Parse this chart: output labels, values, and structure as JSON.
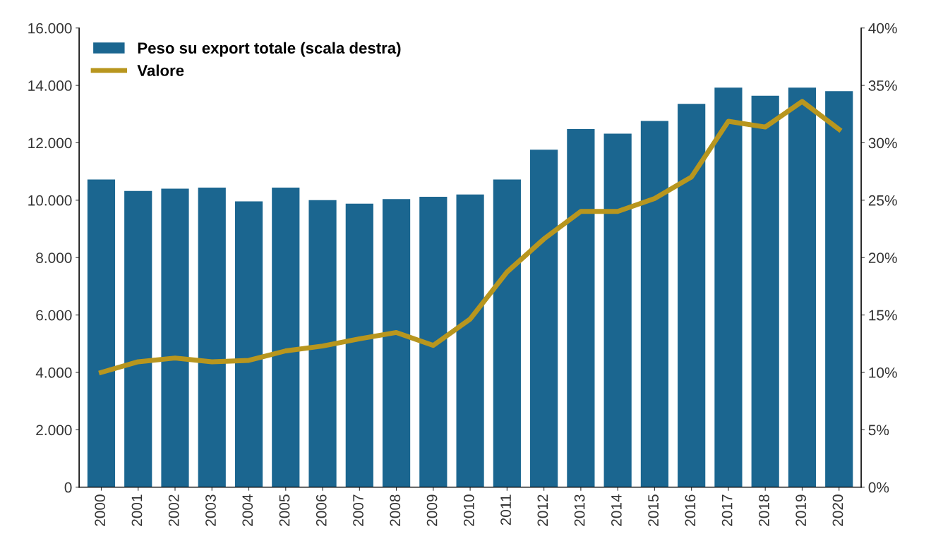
{
  "chart_data": {
    "type": "bar",
    "categories": [
      "2000",
      "2001",
      "2002",
      "2003",
      "2004",
      "2005",
      "2006",
      "2007",
      "2008",
      "2009",
      "2010",
      "2011",
      "2012",
      "2013",
      "2014",
      "2015",
      "2016",
      "2017",
      "2018",
      "2019",
      "2020"
    ],
    "series": [
      {
        "name": "Peso su export totale (scala destra)",
        "axis": "y2",
        "color": "#1b6690",
        "values": [
          26.8,
          25.8,
          26.0,
          26.1,
          24.9,
          26.1,
          25.0,
          24.7,
          25.1,
          25.3,
          25.5,
          26.8,
          29.4,
          31.2,
          30.8,
          31.9,
          33.4,
          34.8,
          34.1,
          34.8,
          34.5
        ]
      },
      {
        "name": "Valore",
        "type": "line",
        "axis": "y",
        "color": "#b8961e",
        "values": [
          4000,
          4370,
          4500,
          4370,
          4420,
          4750,
          4920,
          5170,
          5390,
          4940,
          5860,
          7500,
          8650,
          9610,
          9610,
          10060,
          10810,
          12750,
          12550,
          13440,
          12470
        ]
      }
    ],
    "ylim": [
      0,
      16000
    ],
    "yticks": [
      0,
      {
        "value": 2000,
        "label": "2.000"
      },
      {
        "value": 4000,
        "label": "4.000"
      },
      {
        "value": 6000,
        "label": "6.000"
      },
      {
        "value": 8000,
        "label": "8.000"
      },
      {
        "value": 10000,
        "label": "10.000"
      },
      {
        "value": 12000,
        "label": "12.000"
      },
      {
        "value": 14000,
        "label": "14.000"
      },
      {
        "value": 16000,
        "label": "16.000"
      }
    ],
    "y2lim": [
      0,
      40
    ],
    "y2ticks": [
      {
        "value": 0,
        "label": "0%"
      },
      {
        "value": 5,
        "label": "5%"
      },
      {
        "value": 10,
        "label": "10%"
      },
      {
        "value": 15,
        "label": "15%"
      },
      {
        "value": 20,
        "label": "20%"
      },
      {
        "value": 25,
        "label": "25%"
      },
      {
        "value": 30,
        "label": "30%"
      },
      {
        "value": 35,
        "label": "35%"
      },
      {
        "value": 40,
        "label": "40%"
      }
    ],
    "legend": "top left",
    "grid": false,
    "marker": "none",
    "line_style": "solid"
  }
}
